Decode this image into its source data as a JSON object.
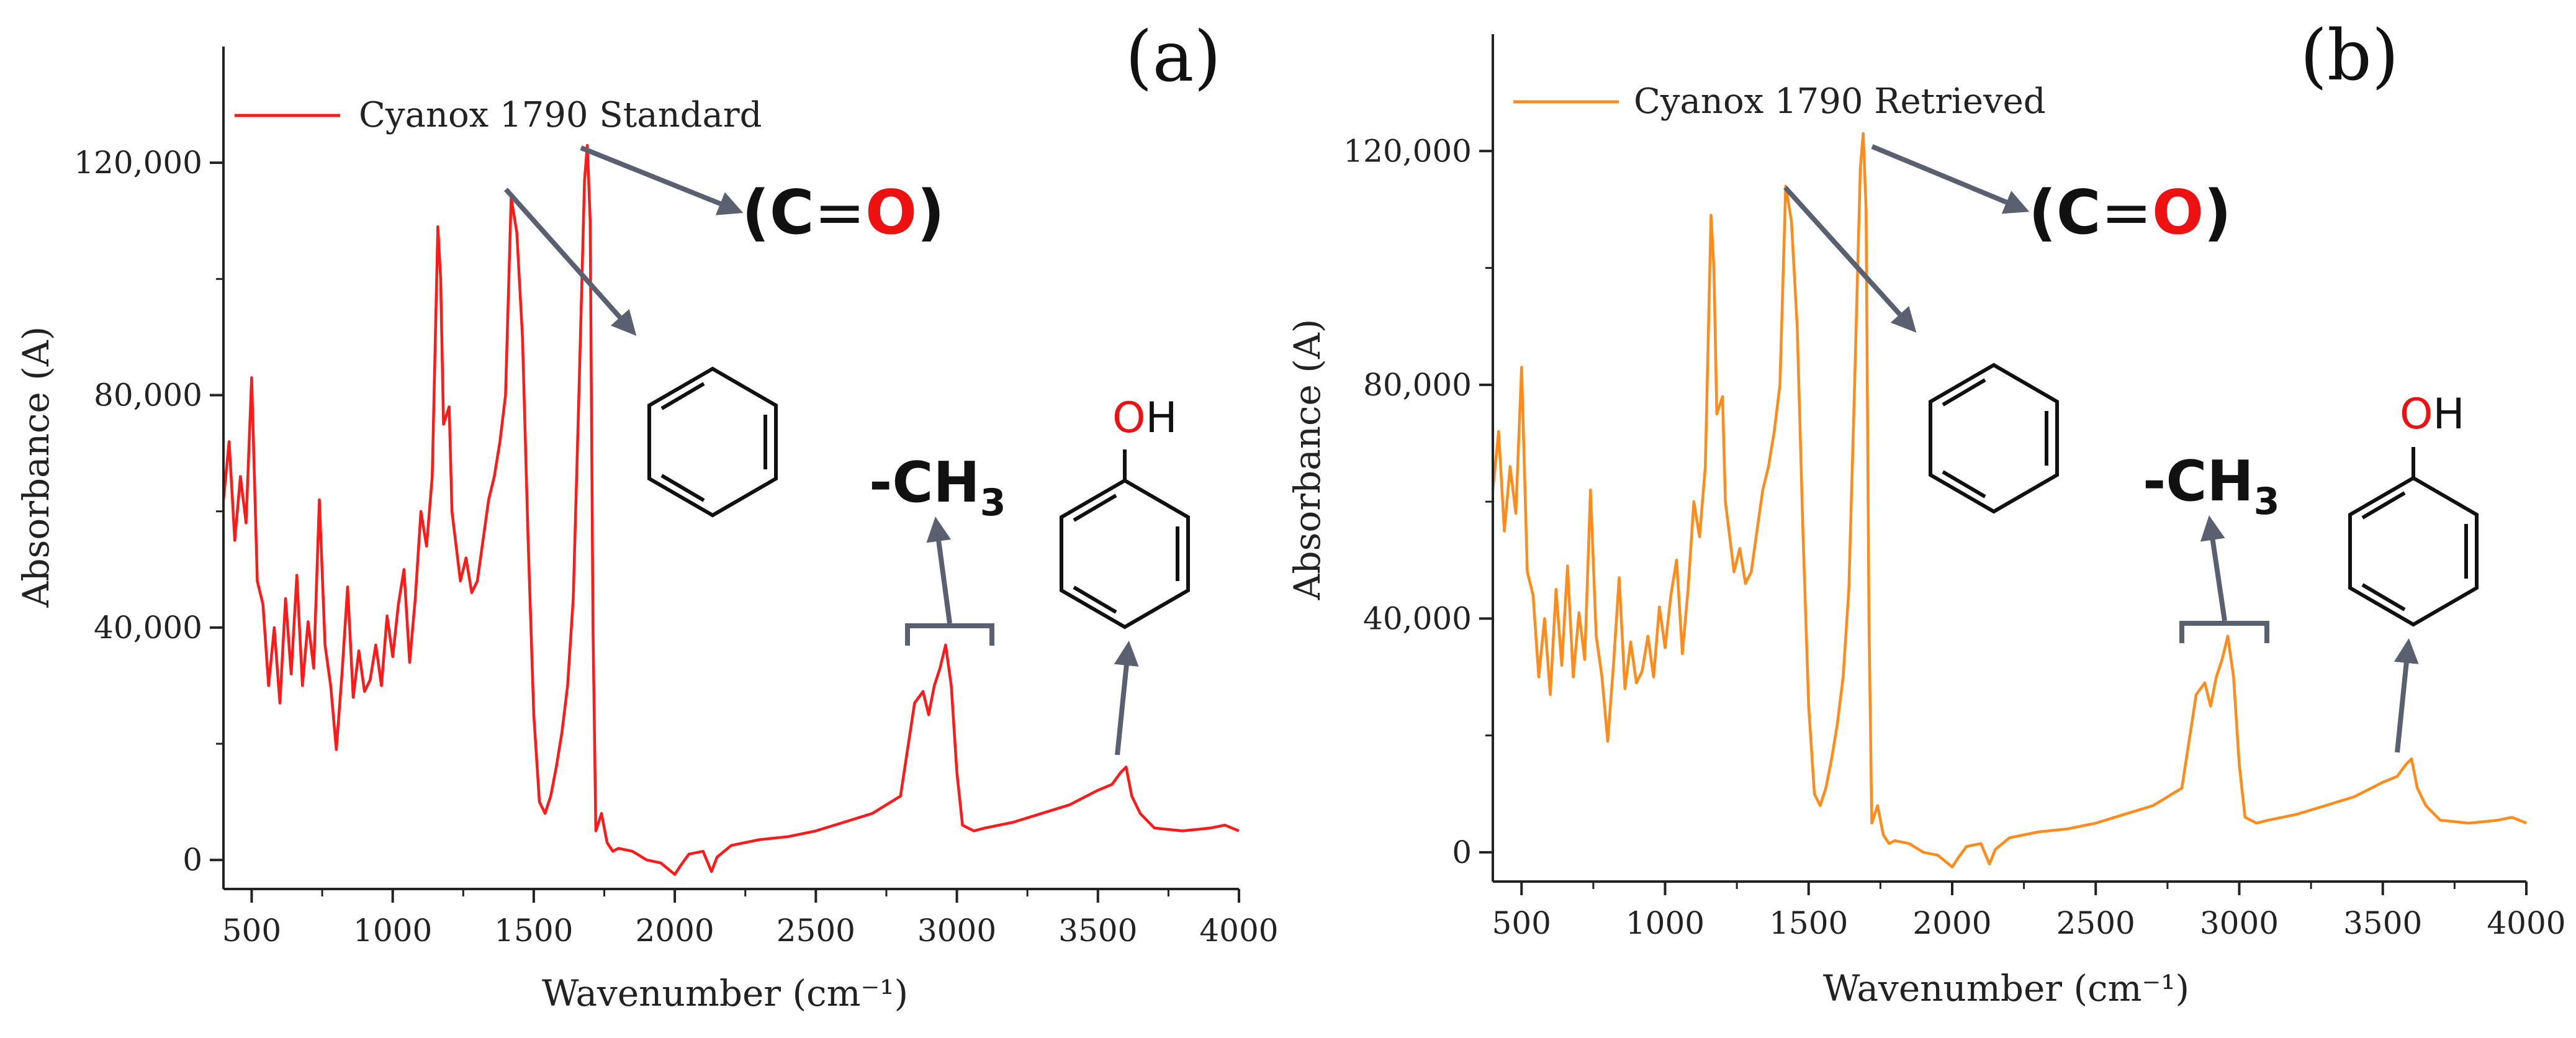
{
  "chart_data": [
    {
      "type": "line",
      "panel_label": "(a)",
      "xlabel": "Wavenumber (cm⁻¹)",
      "ylabel": "Absorbance (A)",
      "xlim": [
        400,
        4000
      ],
      "ylim": [
        -5000,
        140000
      ],
      "xticks": [
        500,
        1000,
        1500,
        2000,
        2500,
        3000,
        3500,
        4000
      ],
      "yticks": [
        0,
        40000,
        80000,
        120000
      ],
      "ytick_labels": [
        "0",
        "40,000",
        "80,000",
        "120,000"
      ],
      "color": "#ff1a1a",
      "series": [
        {
          "name": "Cyanox 1790 Standard",
          "x": [
            400,
            420,
            440,
            460,
            480,
            500,
            520,
            540,
            560,
            580,
            600,
            620,
            640,
            660,
            680,
            700,
            720,
            740,
            760,
            780,
            800,
            820,
            840,
            860,
            880,
            900,
            920,
            940,
            960,
            980,
            1000,
            1020,
            1040,
            1060,
            1080,
            1100,
            1120,
            1140,
            1160,
            1170,
            1180,
            1200,
            1210,
            1220,
            1240,
            1260,
            1280,
            1300,
            1320,
            1340,
            1360,
            1380,
            1400,
            1420,
            1440,
            1460,
            1480,
            1500,
            1520,
            1540,
            1560,
            1580,
            1600,
            1620,
            1640,
            1660,
            1680,
            1690,
            1700,
            1710,
            1720,
            1740,
            1760,
            1780,
            1800,
            1850,
            1900,
            1950,
            2000,
            2020,
            2050,
            2100,
            2130,
            2150,
            2200,
            2300,
            2400,
            2500,
            2600,
            2700,
            2800,
            2850,
            2880,
            2900,
            2920,
            2940,
            2960,
            2980,
            3000,
            3020,
            3060,
            3100,
            3200,
            3300,
            3400,
            3500,
            3550,
            3580,
            3600,
            3620,
            3650,
            3700,
            3800,
            3900,
            3950,
            4000
          ],
          "y": [
            62000,
            72000,
            55000,
            66000,
            58000,
            83000,
            48000,
            44000,
            30000,
            40000,
            27000,
            45000,
            32000,
            49000,
            30000,
            41000,
            33000,
            62000,
            37000,
            30000,
            19000,
            32000,
            47000,
            28000,
            36000,
            29000,
            31000,
            37000,
            30000,
            42000,
            35000,
            44000,
            50000,
            34000,
            45000,
            60000,
            54000,
            66000,
            109000,
            100000,
            75000,
            78000,
            60000,
            56000,
            48000,
            52000,
            46000,
            48000,
            55000,
            62000,
            66000,
            72000,
            80000,
            114000,
            108000,
            90000,
            55000,
            25000,
            10000,
            8000,
            11000,
            16000,
            22000,
            30000,
            45000,
            80000,
            117000,
            123000,
            110000,
            40000,
            5000,
            8000,
            3000,
            1500,
            2000,
            1500,
            0,
            -500,
            -2500,
            -1000,
            1000,
            1500,
            -2000,
            500,
            2500,
            3500,
            4000,
            5000,
            6500,
            8000,
            11000,
            27000,
            29000,
            25000,
            30000,
            33000,
            37000,
            30000,
            15000,
            6000,
            5000,
            5500,
            6500,
            8000,
            9500,
            12000,
            13000,
            15000,
            16000,
            11000,
            8000,
            5500,
            5000,
            5500,
            6000,
            5000
          ]
        }
      ],
      "legend_entry": "Cyanox 1790 Standard"
    },
    {
      "type": "line",
      "panel_label": "(b)",
      "xlabel": "Wavenumber (cm⁻¹)",
      "ylabel": "Absorbance (A)",
      "xlim": [
        400,
        4000
      ],
      "ylim": [
        -5000,
        140000
      ],
      "xticks": [
        500,
        1000,
        1500,
        2000,
        2500,
        3000,
        3500,
        4000
      ],
      "yticks": [
        0,
        40000,
        80000,
        120000
      ],
      "ytick_labels": [
        "0",
        "40,000",
        "80,000",
        "120,000"
      ],
      "color": "#ff8c1a",
      "series": [
        {
          "name": "Cyanox 1790 Retrieved",
          "x": [
            400,
            420,
            440,
            460,
            480,
            500,
            520,
            540,
            560,
            580,
            600,
            620,
            640,
            660,
            680,
            700,
            720,
            740,
            760,
            780,
            800,
            820,
            840,
            860,
            880,
            900,
            920,
            940,
            960,
            980,
            1000,
            1020,
            1040,
            1060,
            1080,
            1100,
            1120,
            1140,
            1160,
            1170,
            1180,
            1200,
            1210,
            1220,
            1240,
            1260,
            1280,
            1300,
            1320,
            1340,
            1360,
            1380,
            1400,
            1420,
            1440,
            1460,
            1480,
            1500,
            1520,
            1540,
            1560,
            1580,
            1600,
            1620,
            1640,
            1660,
            1680,
            1690,
            1700,
            1710,
            1720,
            1740,
            1760,
            1780,
            1800,
            1850,
            1900,
            1950,
            2000,
            2020,
            2050,
            2100,
            2130,
            2150,
            2200,
            2300,
            2400,
            2500,
            2600,
            2700,
            2800,
            2850,
            2880,
            2900,
            2920,
            2940,
            2960,
            2980,
            3000,
            3020,
            3060,
            3100,
            3200,
            3300,
            3400,
            3500,
            3550,
            3580,
            3600,
            3620,
            3650,
            3700,
            3800,
            3900,
            3950,
            4000
          ],
          "y": [
            62000,
            72000,
            55000,
            66000,
            58000,
            83000,
            48000,
            44000,
            30000,
            40000,
            27000,
            45000,
            32000,
            49000,
            30000,
            41000,
            33000,
            62000,
            37000,
            30000,
            19000,
            32000,
            47000,
            28000,
            36000,
            29000,
            31000,
            37000,
            30000,
            42000,
            35000,
            44000,
            50000,
            34000,
            45000,
            60000,
            54000,
            66000,
            109000,
            100000,
            75000,
            78000,
            60000,
            56000,
            48000,
            52000,
            46000,
            48000,
            55000,
            62000,
            66000,
            72000,
            80000,
            114000,
            108000,
            90000,
            55000,
            25000,
            10000,
            8000,
            11000,
            16000,
            22000,
            30000,
            45000,
            80000,
            117000,
            123000,
            110000,
            40000,
            5000,
            8000,
            3000,
            1500,
            2000,
            1500,
            0,
            -500,
            -2500,
            -1000,
            1000,
            1500,
            -2000,
            500,
            2500,
            3500,
            4000,
            5000,
            6500,
            8000,
            11000,
            27000,
            29000,
            25000,
            30000,
            33000,
            37000,
            30000,
            15000,
            6000,
            5000,
            5500,
            6500,
            8000,
            9500,
            12000,
            13000,
            15000,
            16000,
            11000,
            8000,
            5500,
            5000,
            5500,
            6000,
            5000
          ]
        }
      ],
      "legend_entry": "Cyanox 1790 Retrieved"
    }
  ],
  "annotations": {
    "carbonyl": {
      "open": "(C",
      "bond": "=",
      "o": "O",
      "close": ")"
    },
    "methyl": {
      "text": "-CH",
      "sub": "3"
    },
    "phenol": {
      "o": "O",
      "h": "H"
    },
    "o_color": "#ee1111",
    "arrow_color": "#5b6070"
  }
}
